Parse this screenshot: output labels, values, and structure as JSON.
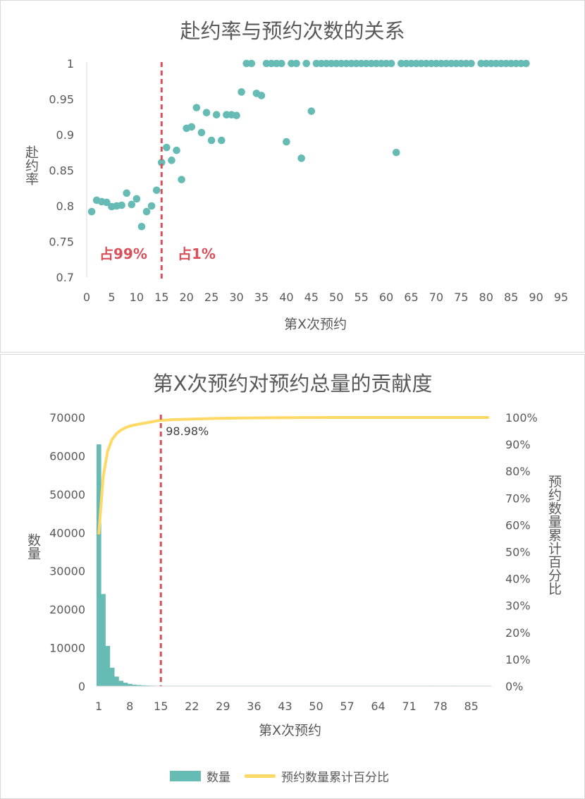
{
  "chart_data": [
    {
      "type": "scatter",
      "title": "赴约率与预约次数的关系",
      "xlabel": "第X次预约",
      "ylabel": "赴约率",
      "xlim": [
        0,
        95
      ],
      "ylim": [
        0.7,
        1
      ],
      "x_ticks": [
        "0",
        "5",
        "10",
        "15",
        "20",
        "25",
        "30",
        "35",
        "40",
        "45",
        "50",
        "55",
        "60",
        "65",
        "70",
        "75",
        "80",
        "85",
        "90",
        "95"
      ],
      "y_ticks": [
        "0.7",
        "0.75",
        "0.8",
        "0.85",
        "0.9",
        "0.95",
        "1"
      ],
      "grid": false,
      "marker_color": "#66bbb4",
      "annotations": [
        {
          "text": "占99%",
          "color": "#d9505a"
        },
        {
          "text": "占1%",
          "color": "#d9505a"
        }
      ],
      "reference_line": {
        "x": 15,
        "color": "#d9505a",
        "style": "dashed"
      },
      "points": [
        [
          1,
          0.792
        ],
        [
          2,
          0.808
        ],
        [
          3,
          0.806
        ],
        [
          4,
          0.805
        ],
        [
          5,
          0.799
        ],
        [
          6,
          0.8
        ],
        [
          7,
          0.801
        ],
        [
          8,
          0.818
        ],
        [
          9,
          0.802
        ],
        [
          10,
          0.81
        ],
        [
          11,
          0.771
        ],
        [
          12,
          0.792
        ],
        [
          13,
          0.8
        ],
        [
          14,
          0.822
        ],
        [
          15,
          0.861
        ],
        [
          16,
          0.882
        ],
        [
          17,
          0.864
        ],
        [
          18,
          0.878
        ],
        [
          19,
          0.837
        ],
        [
          20,
          0.909
        ],
        [
          21,
          0.911
        ],
        [
          22,
          0.938
        ],
        [
          23,
          0.903
        ],
        [
          24,
          0.931
        ],
        [
          25,
          0.892
        ],
        [
          26,
          0.928
        ],
        [
          27,
          0.892
        ],
        [
          28,
          0.928
        ],
        [
          29,
          0.928
        ],
        [
          30,
          0.927
        ],
        [
          31,
          0.96
        ],
        [
          32,
          1
        ],
        [
          33,
          1
        ],
        [
          34,
          0.958
        ],
        [
          35,
          0.955
        ],
        [
          36,
          1
        ],
        [
          37,
          1
        ],
        [
          38,
          1
        ],
        [
          39,
          1
        ],
        [
          40,
          0.89
        ],
        [
          41,
          1
        ],
        [
          42,
          1
        ],
        [
          43,
          0.867
        ],
        [
          44,
          1
        ],
        [
          45,
          0.933
        ],
        [
          46,
          1
        ],
        [
          47,
          1
        ],
        [
          48,
          1
        ],
        [
          49,
          1
        ],
        [
          50,
          1
        ],
        [
          51,
          1
        ],
        [
          52,
          1
        ],
        [
          53,
          1
        ],
        [
          54,
          1
        ],
        [
          55,
          1
        ],
        [
          56,
          1
        ],
        [
          57,
          1
        ],
        [
          58,
          1
        ],
        [
          59,
          1
        ],
        [
          60,
          1
        ],
        [
          61,
          1
        ],
        [
          62,
          0.875
        ],
        [
          63,
          1
        ],
        [
          64,
          1
        ],
        [
          65,
          1
        ],
        [
          66,
          1
        ],
        [
          67,
          1
        ],
        [
          68,
          1
        ],
        [
          69,
          1
        ],
        [
          70,
          1
        ],
        [
          71,
          1
        ],
        [
          72,
          1
        ],
        [
          73,
          1
        ],
        [
          74,
          1
        ],
        [
          75,
          1
        ],
        [
          76,
          1
        ],
        [
          77,
          1
        ],
        [
          79,
          1
        ],
        [
          80,
          1
        ],
        [
          81,
          1
        ],
        [
          82,
          1
        ],
        [
          83,
          1
        ],
        [
          84,
          1
        ],
        [
          85,
          1
        ],
        [
          86,
          1
        ],
        [
          87,
          1
        ],
        [
          88,
          1
        ]
      ]
    },
    {
      "type": "bar",
      "title": "第X次预约对预约总量的贡献度",
      "xlabel": "第X次预约",
      "ylabel": "数量",
      "ylabel_right": "预约数量累计百分比",
      "ylim": [
        0,
        70000
      ],
      "ylim_right": [
        0,
        1
      ],
      "x_range": [
        1,
        89
      ],
      "x_ticks": [
        "1",
        "8",
        "15",
        "22",
        "29",
        "36",
        "43",
        "50",
        "57",
        "64",
        "71",
        "78",
        "85"
      ],
      "y_ticks": [
        "0",
        "10000",
        "20000",
        "30000",
        "40000",
        "50000",
        "60000",
        "70000"
      ],
      "y_ticks_right": [
        "0%",
        "10%",
        "20%",
        "30%",
        "40%",
        "50%",
        "60%",
        "70%",
        "80%",
        "90%",
        "100%"
      ],
      "reference_line": {
        "x": 15,
        "color": "#d9505a",
        "style": "dashed",
        "label": "98.98%"
      },
      "series": [
        {
          "name": "数量",
          "type": "bar",
          "color": "#66bbb4",
          "values": [
            63000,
            24000,
            10500,
            4800,
            2500,
            1400,
            900,
            600,
            400,
            300,
            230,
            180,
            140,
            110,
            90,
            75,
            60,
            50,
            42,
            36,
            30,
            26,
            22,
            19,
            16,
            14,
            12,
            11,
            10,
            9,
            8,
            7,
            6,
            6,
            5,
            5,
            4,
            4,
            4,
            3,
            3,
            3,
            3,
            2,
            2,
            2,
            2,
            2,
            2,
            2,
            2,
            1,
            1,
            1,
            1,
            1,
            1,
            1,
            1,
            1,
            1,
            1,
            1,
            1,
            1,
            1,
            1,
            1,
            1,
            1,
            1,
            1,
            1,
            1,
            1,
            1,
            1,
            1,
            1,
            1,
            1,
            1,
            1,
            1,
            1,
            1,
            1,
            1,
            1
          ]
        },
        {
          "name": "预约数量累计百分比",
          "type": "line",
          "color": "#ffd966",
          "values": [
            0.565,
            0.78,
            0.875,
            0.918,
            0.94,
            0.953,
            0.962,
            0.968,
            0.972,
            0.975,
            0.978,
            0.981,
            0.984,
            0.987,
            0.9898,
            0.99,
            0.991,
            0.992,
            0.9925,
            0.993,
            0.9935,
            0.994,
            0.9945,
            0.995,
            0.9955,
            0.996,
            0.9963,
            0.9966,
            0.9969,
            0.9972,
            0.9975,
            0.9977,
            0.9979,
            0.9981,
            0.9983,
            0.9985,
            0.9987,
            0.9988,
            0.9989,
            0.999,
            0.9991,
            0.9992,
            0.9993,
            0.9994,
            0.9995,
            0.9996,
            0.9997,
            0.9997,
            0.9998,
            0.9998,
            0.9998,
            0.9999,
            0.9999,
            0.9999,
            0.9999,
            0.9999,
            0.9999,
            0.9999,
            1,
            1,
            1,
            1,
            1,
            1,
            1,
            1,
            1,
            1,
            1,
            1,
            1,
            1,
            1,
            1,
            1,
            1,
            1,
            1,
            1,
            1,
            1,
            1,
            1,
            1,
            1,
            1,
            1,
            1,
            1
          ]
        }
      ]
    }
  ]
}
